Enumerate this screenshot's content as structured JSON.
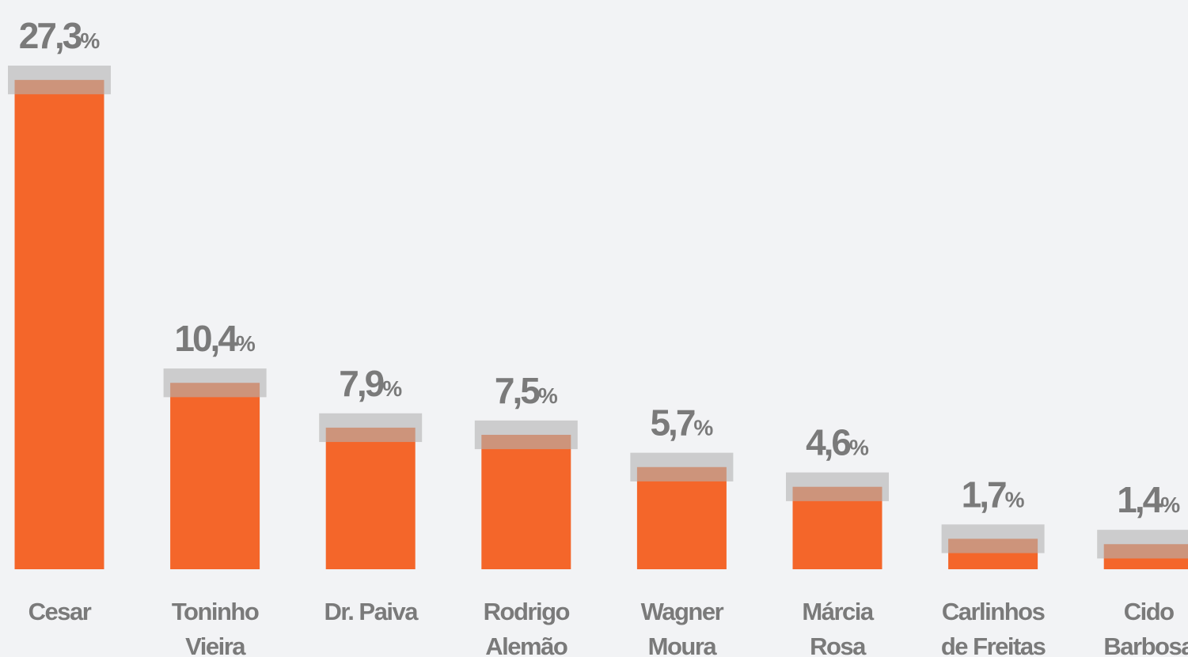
{
  "chart_data": {
    "type": "bar",
    "categories": [
      [
        "Cesar"
      ],
      [
        "Toninho",
        "Vieira"
      ],
      [
        "Dr. Paiva"
      ],
      [
        "Rodrigo",
        "Alemão"
      ],
      [
        "Wagner",
        "Moura"
      ],
      [
        "Márcia",
        "Rosa"
      ],
      [
        "Carlinhos",
        "de Freitas"
      ],
      [
        "Cido",
        "Barbosa"
      ]
    ],
    "values": [
      27.3,
      10.4,
      7.9,
      7.5,
      5.7,
      4.6,
      1.7,
      1.4
    ],
    "value_labels": [
      "27,3",
      "10,4",
      "7,9",
      "7,5",
      "5,7",
      "4,6",
      "1,7",
      "1,4"
    ],
    "unit": "%",
    "errors": [
      0.8,
      0.8,
      0.8,
      0.8,
      0.8,
      0.8,
      0.8,
      0.8
    ],
    "color": "#f4662a",
    "ylim": [
      0,
      30
    ]
  }
}
